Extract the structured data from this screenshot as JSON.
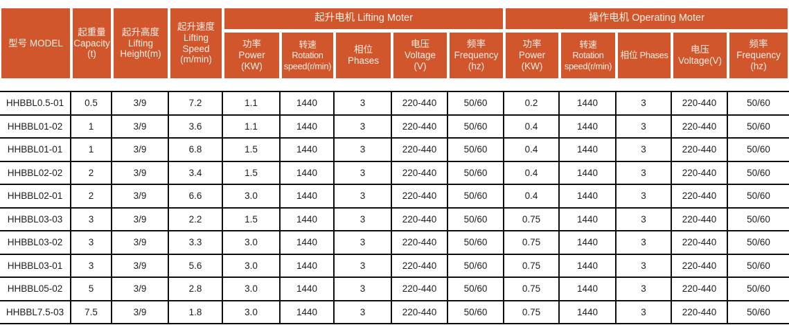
{
  "accent_color": "#d2562c",
  "header_text_color": "#fdf0e8",
  "table": {
    "columns": [
      {
        "id": "model",
        "lines": [
          "型号 MODEL"
        ]
      },
      {
        "id": "capacity",
        "lines": [
          "起重量",
          "Capacity",
          "(t)"
        ]
      },
      {
        "id": "lifting_height",
        "lines": [
          "起升高度",
          "Lifting",
          "Height(m)"
        ]
      },
      {
        "id": "lifting_speed",
        "lines": [
          "起升速度",
          "Lifting",
          "Speed",
          "(m/min)"
        ]
      }
    ],
    "groups": [
      {
        "label": "起升电机 Lifting Moter",
        "columns": [
          {
            "id": "lift_power",
            "lines": [
              "功率",
              "Power",
              "(KW)"
            ]
          },
          {
            "id": "lift_rotation",
            "lines": [
              "转速",
              "Rotation",
              "speed(r/min)"
            ]
          },
          {
            "id": "lift_phases",
            "lines": [
              "相位",
              "Phases"
            ]
          },
          {
            "id": "lift_voltage",
            "lines": [
              "电压",
              "Voltage",
              "(V)"
            ]
          },
          {
            "id": "lift_frequency",
            "lines": [
              "频率",
              "Frequency",
              "(hz)"
            ]
          }
        ]
      },
      {
        "label": "操作电机 Operating Moter",
        "columns": [
          {
            "id": "op_power",
            "lines": [
              "功率",
              "Power",
              "(KW)"
            ]
          },
          {
            "id": "op_rotation",
            "lines": [
              "转速",
              "Rotation",
              "speed(r/min)"
            ]
          },
          {
            "id": "op_phases",
            "lines": [
              "相位 Phases"
            ]
          },
          {
            "id": "op_voltage",
            "lines": [
              "电压",
              "Voltage(V)"
            ]
          },
          {
            "id": "op_frequency",
            "lines": [
              "频率",
              "Frequency",
              "(hz)"
            ]
          }
        ]
      }
    ],
    "rows": [
      [
        "HHBBL0.5-01",
        "0.5",
        "3/9",
        "7.2",
        "1.1",
        "1440",
        "3",
        "220-440",
        "50/60",
        "0.2",
        "1440",
        "3",
        "220-440",
        "50/60"
      ],
      [
        "HHBBL01-02",
        "1",
        "3/9",
        "3.6",
        "1.1",
        "1440",
        "3",
        "220-440",
        "50/60",
        "0.4",
        "1440",
        "3",
        "220-440",
        "50/60"
      ],
      [
        "HHBBL01-01",
        "1",
        "3/9",
        "6.8",
        "1.5",
        "1440",
        "3",
        "220-440",
        "50/60",
        "0.4",
        "1440",
        "3",
        "220-440",
        "50/60"
      ],
      [
        "HHBBL02-02",
        "2",
        "3/9",
        "3.4",
        "1.5",
        "1440",
        "3",
        "220-440",
        "50/60",
        "0.4",
        "1440",
        "3",
        "220-440",
        "50/60"
      ],
      [
        "HHBBL02-01",
        "2",
        "3/9",
        "6.6",
        "3.0",
        "1440",
        "3",
        "220-440",
        "50/60",
        "0.4",
        "1440",
        "3",
        "220-440",
        "50/60"
      ],
      [
        "HHBBL03-03",
        "3",
        "3/9",
        "2.2",
        "1.5",
        "1440",
        "3",
        "220-440",
        "50/60",
        "0.75",
        "1440",
        "3",
        "220-440",
        "50/60"
      ],
      [
        "HHBBL03-02",
        "3",
        "3/9",
        "3.3",
        "3.0",
        "1440",
        "3",
        "220-440",
        "50/60",
        "0.75",
        "1440",
        "3",
        "220-440",
        "50/60"
      ],
      [
        "HHBBL03-01",
        "3",
        "3/9",
        "5.6",
        "3.0",
        "1440",
        "3",
        "220-440",
        "50/60",
        "0.75",
        "1440",
        "3",
        "220-440",
        "50/60"
      ],
      [
        "HHBBL05-02",
        "5",
        "3/9",
        "2.8",
        "3.0",
        "1440",
        "3",
        "220-440",
        "50/60",
        "0.75",
        "1440",
        "3",
        "220-440",
        "50/60"
      ],
      [
        "HHBBL7.5-03",
        "7.5",
        "3/9",
        "1.8",
        "3.0",
        "1440",
        "3",
        "220-440",
        "50/60",
        "0.75",
        "1440",
        "3",
        "220-440",
        "50/60"
      ]
    ]
  }
}
